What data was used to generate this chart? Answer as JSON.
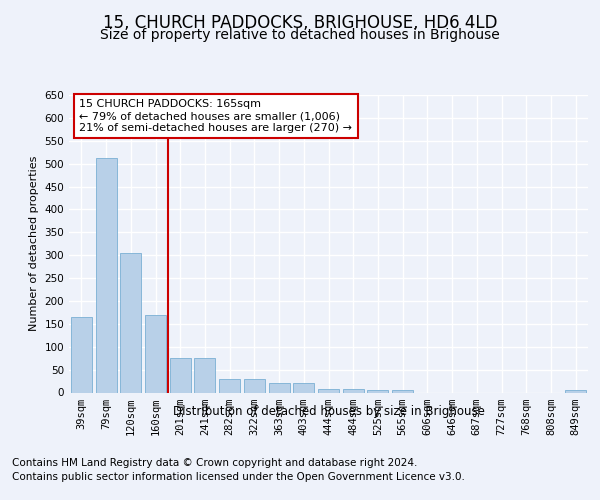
{
  "title": "15, CHURCH PADDOCKS, BRIGHOUSE, HD6 4LD",
  "subtitle": "Size of property relative to detached houses in Brighouse",
  "xlabel": "Distribution of detached houses by size in Brighouse",
  "ylabel": "Number of detached properties",
  "categories": [
    "39sqm",
    "79sqm",
    "120sqm",
    "160sqm",
    "201sqm",
    "241sqm",
    "282sqm",
    "322sqm",
    "363sqm",
    "403sqm",
    "444sqm",
    "484sqm",
    "525sqm",
    "565sqm",
    "606sqm",
    "646sqm",
    "687sqm",
    "727sqm",
    "768sqm",
    "808sqm",
    "849sqm"
  ],
  "values": [
    165,
    512,
    305,
    170,
    76,
    76,
    30,
    30,
    20,
    20,
    8,
    8,
    5,
    5,
    0,
    0,
    0,
    0,
    0,
    0,
    5
  ],
  "bar_color": "#b8d0e8",
  "bar_edge_color": "#7aafd4",
  "vline_x": 3.5,
  "vline_color": "#cc0000",
  "ylim": [
    0,
    650
  ],
  "yticks": [
    0,
    50,
    100,
    150,
    200,
    250,
    300,
    350,
    400,
    450,
    500,
    550,
    600,
    650
  ],
  "annotation_box_text": "15 CHURCH PADDOCKS: 165sqm\n← 79% of detached houses are smaller (1,006)\n21% of semi-detached houses are larger (270) →",
  "footer_line1": "Contains HM Land Registry data © Crown copyright and database right 2024.",
  "footer_line2": "Contains public sector information licensed under the Open Government Licence v3.0.",
  "background_color": "#eef2fa",
  "plot_bg_color": "#eef2fa",
  "grid_color": "#ffffff",
  "title_fontsize": 12,
  "subtitle_fontsize": 10,
  "ylabel_fontsize": 8,
  "footer_fontsize": 7.5,
  "tick_fontsize": 7.5,
  "ann_fontsize": 8
}
